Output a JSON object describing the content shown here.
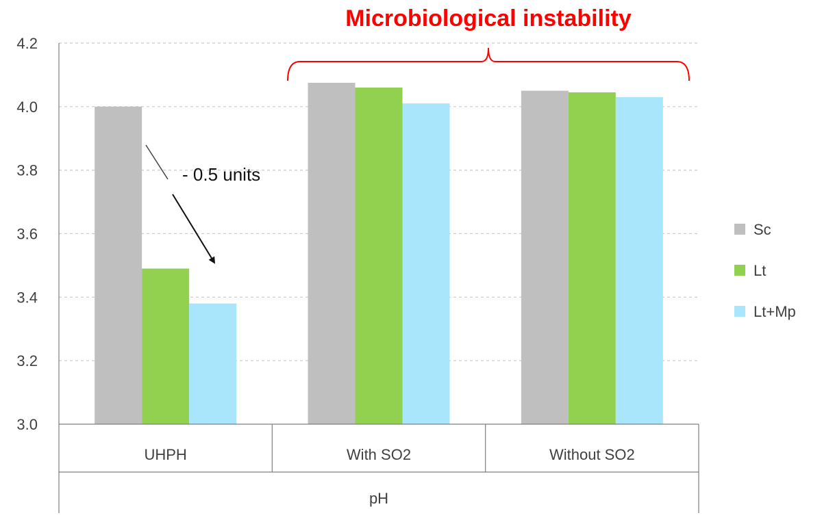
{
  "chart_data": {
    "type": "bar",
    "xlabel": "pH",
    "ylim": [
      3.0,
      4.2
    ],
    "yticks": [
      "3.0",
      "3.2",
      "3.4",
      "3.6",
      "3.8",
      "4.0",
      "4.2"
    ],
    "ytick_values": [
      3.0,
      3.2,
      3.4,
      3.6,
      3.8,
      4.0,
      4.2
    ],
    "grid": "horizontal dashed",
    "legend_position": "right",
    "categories": [
      "UHPH",
      "With SO2",
      "Without SO2"
    ],
    "series": [
      {
        "name": "Sc",
        "color": "#bfbfbf",
        "values": [
          4.0,
          4.075,
          4.05
        ]
      },
      {
        "name": "Lt",
        "color": "#92d050",
        "values": [
          3.49,
          4.06,
          4.045
        ]
      },
      {
        "name": "Lt+Mp",
        "color": "#a9e5fb",
        "values": [
          3.38,
          4.01,
          4.03
        ]
      }
    ],
    "annotations": {
      "bracket_label": "Microbiological instability",
      "bracket_color": "#ff0000",
      "arrow_label": "- 0.5 units"
    }
  }
}
